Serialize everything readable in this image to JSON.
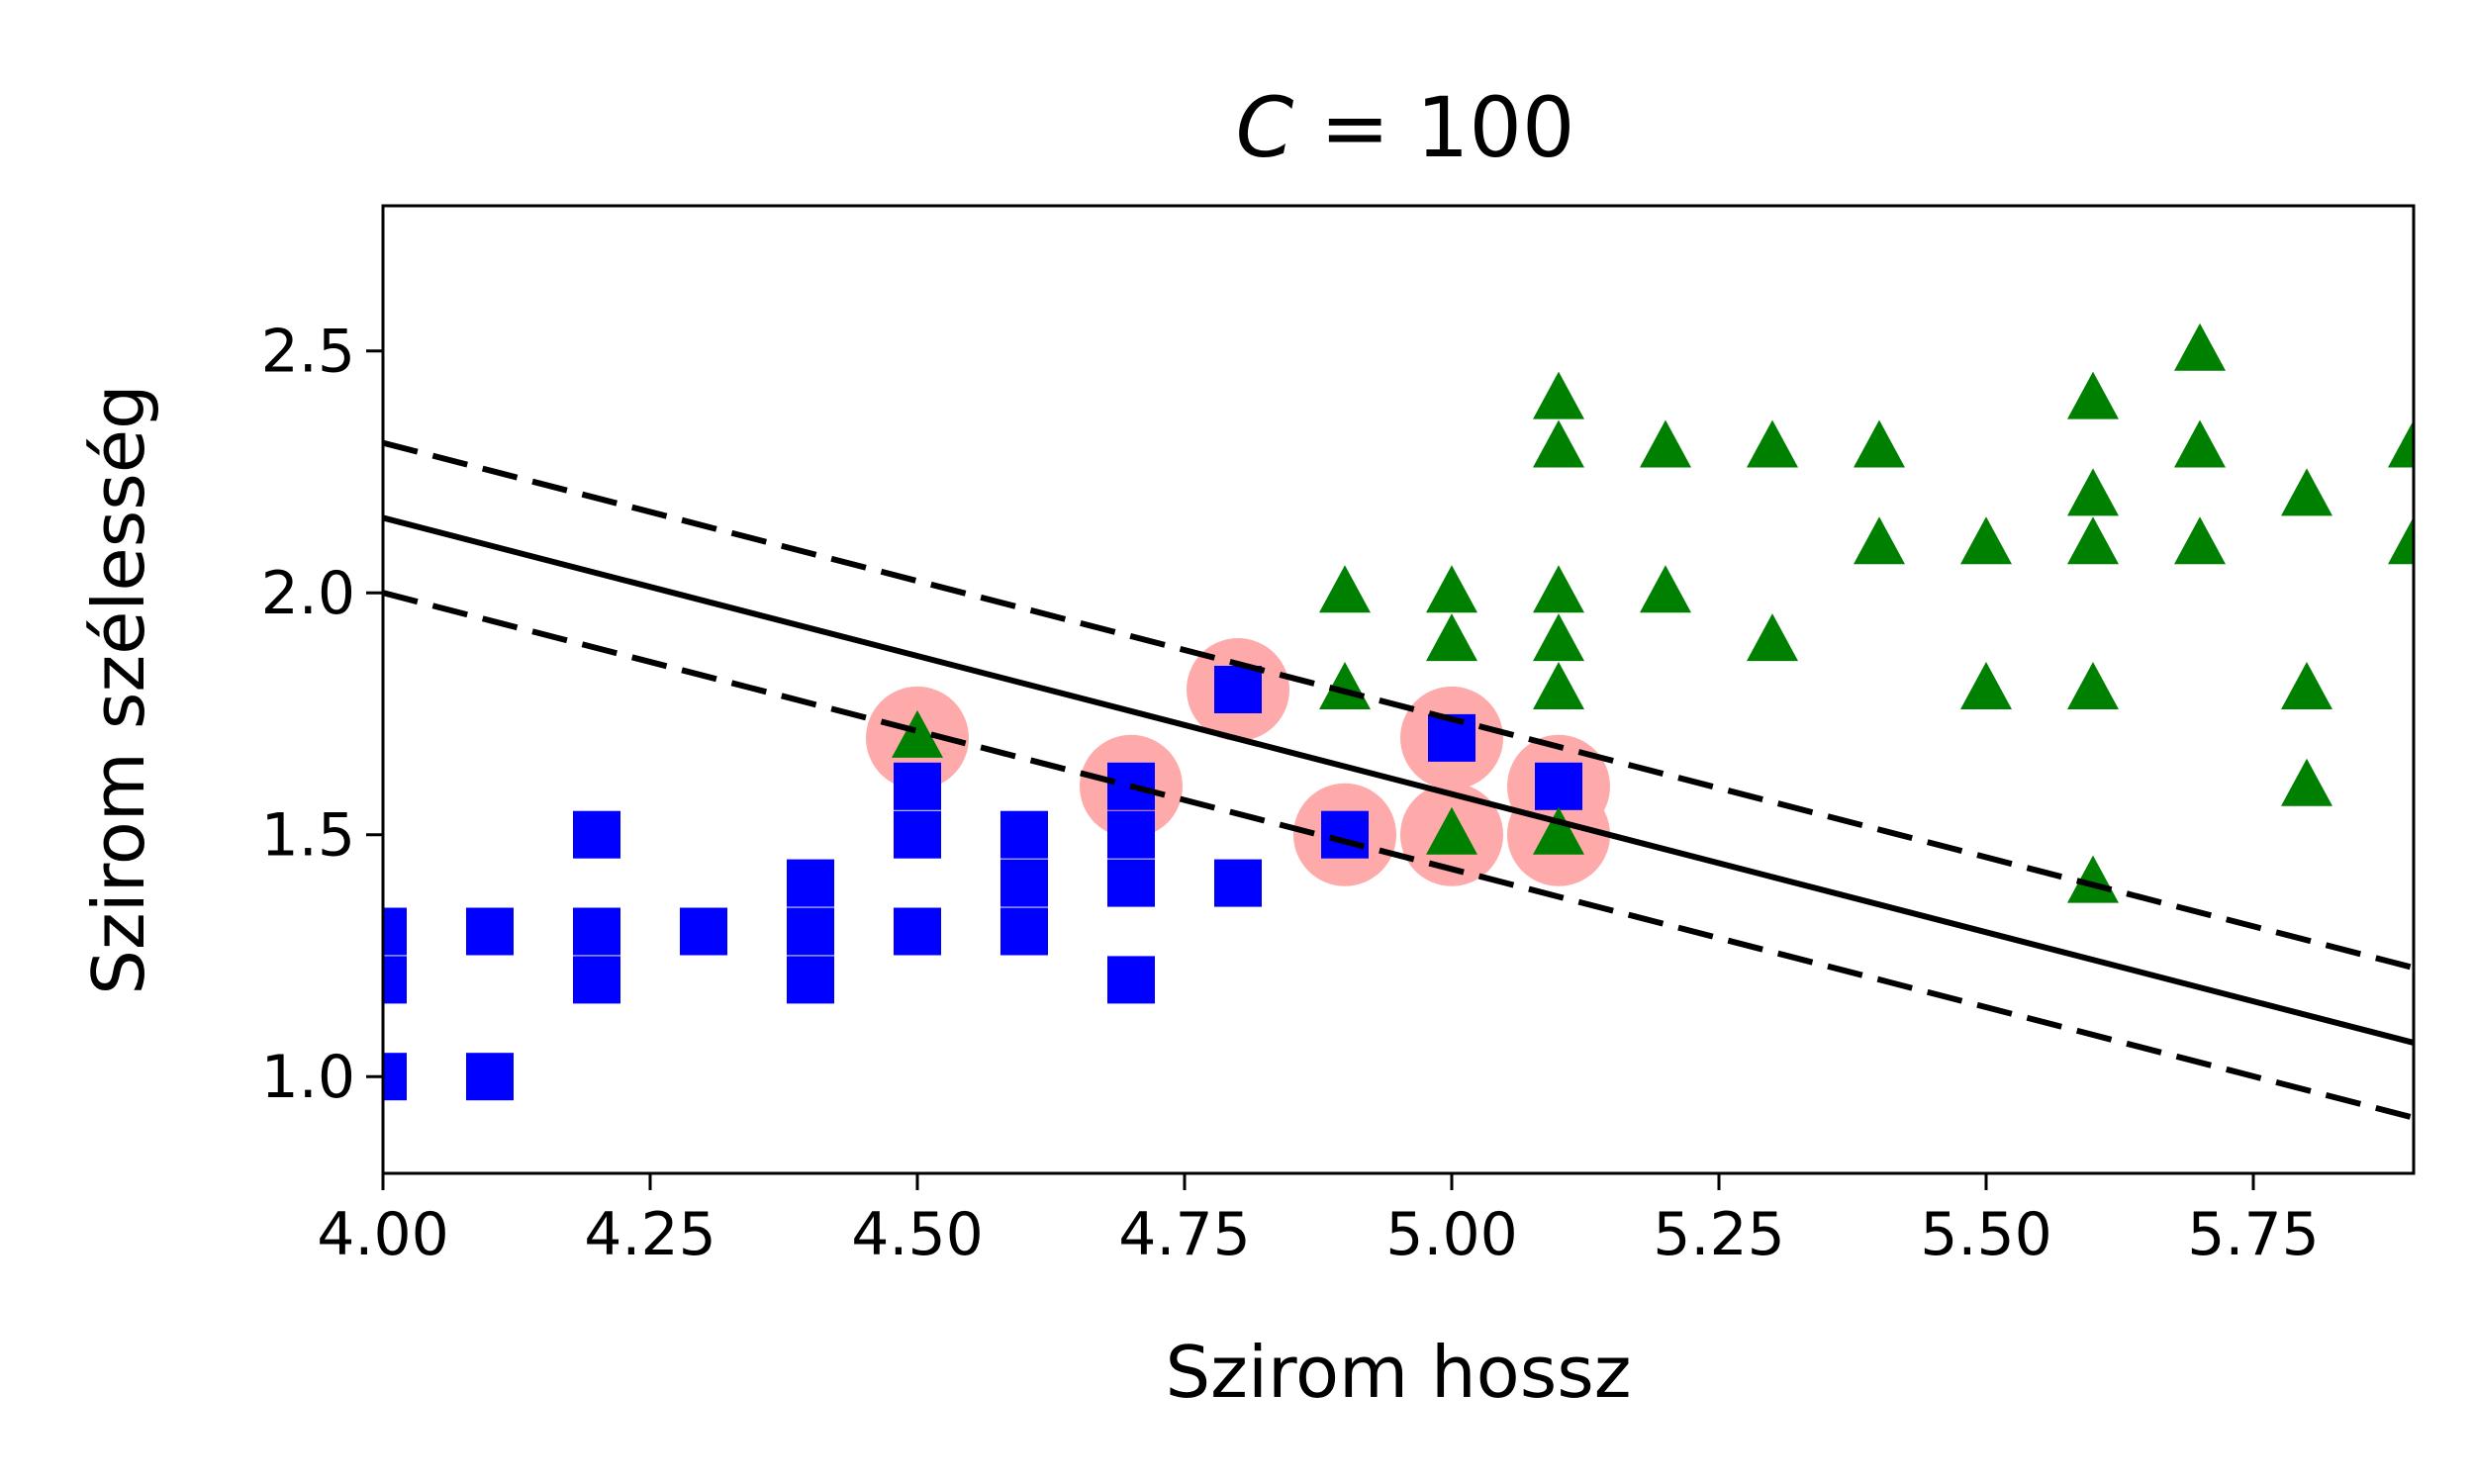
{
  "chart_data": {
    "type": "scatter",
    "title_var": "C",
    "title_rest": " = 100",
    "xlabel": "Szirom hossz",
    "ylabel": "Szirom szélesség",
    "xlim": [
      4.0,
      5.9
    ],
    "ylim": [
      0.8,
      2.8
    ],
    "xticks": [
      4.0,
      4.25,
      4.5,
      4.75,
      5.0,
      5.25,
      5.5,
      5.75
    ],
    "xtick_labels": [
      "4.00",
      "4.25",
      "4.50",
      "4.75",
      "5.00",
      "5.25",
      "5.50",
      "5.75"
    ],
    "yticks": [
      1.0,
      1.5,
      2.0,
      2.5
    ],
    "ytick_labels": [
      "1.0",
      "1.5",
      "2.0",
      "2.5"
    ],
    "grid": false,
    "series": [
      {
        "marker": "square",
        "color": "#0000ff",
        "points": [
          [
            4.0,
            1.0
          ],
          [
            4.0,
            1.2
          ],
          [
            4.0,
            1.3
          ],
          [
            4.1,
            1.0
          ],
          [
            4.1,
            1.3
          ],
          [
            4.2,
            1.2
          ],
          [
            4.2,
            1.3
          ],
          [
            4.2,
            1.5
          ],
          [
            4.3,
            1.3
          ],
          [
            4.4,
            1.2
          ],
          [
            4.4,
            1.3
          ],
          [
            4.4,
            1.4
          ],
          [
            4.5,
            1.3
          ],
          [
            4.5,
            1.5
          ],
          [
            4.5,
            1.6
          ],
          [
            4.6,
            1.3
          ],
          [
            4.6,
            1.4
          ],
          [
            4.6,
            1.5
          ],
          [
            4.7,
            1.2
          ],
          [
            4.7,
            1.4
          ],
          [
            4.7,
            1.5
          ],
          [
            4.7,
            1.6
          ],
          [
            4.8,
            1.4
          ],
          [
            4.8,
            1.8
          ],
          [
            4.9,
            1.5
          ],
          [
            5.0,
            1.7
          ],
          [
            5.1,
            1.6
          ]
        ]
      },
      {
        "marker": "triangle",
        "color": "#008000",
        "points": [
          [
            4.5,
            1.7
          ],
          [
            4.9,
            1.8
          ],
          [
            4.9,
            2.0
          ],
          [
            5.0,
            1.5
          ],
          [
            5.0,
            1.9
          ],
          [
            5.0,
            2.0
          ],
          [
            5.1,
            1.5
          ],
          [
            5.1,
            1.8
          ],
          [
            5.1,
            1.9
          ],
          [
            5.1,
            2.0
          ],
          [
            5.1,
            2.3
          ],
          [
            5.1,
            2.4
          ],
          [
            5.2,
            2.0
          ],
          [
            5.2,
            2.3
          ],
          [
            5.3,
            1.9
          ],
          [
            5.3,
            2.3
          ],
          [
            5.4,
            2.1
          ],
          [
            5.4,
            2.3
          ],
          [
            5.5,
            1.8
          ],
          [
            5.5,
            2.1
          ],
          [
            5.6,
            1.4
          ],
          [
            5.6,
            1.8
          ],
          [
            5.6,
            2.1
          ],
          [
            5.6,
            2.2
          ],
          [
            5.6,
            2.4
          ],
          [
            5.7,
            2.1
          ],
          [
            5.7,
            2.3
          ],
          [
            5.7,
            2.5
          ],
          [
            5.8,
            1.6
          ],
          [
            5.8,
            1.8
          ],
          [
            5.8,
            2.2
          ],
          [
            5.9,
            2.1
          ],
          [
            5.9,
            2.3
          ]
        ]
      }
    ],
    "support_vectors": {
      "color": "#ffaaaa",
      "points": [
        [
          4.5,
          1.7
        ],
        [
          4.7,
          1.6
        ],
        [
          4.8,
          1.8
        ],
        [
          4.9,
          1.5
        ],
        [
          5.0,
          1.7
        ],
        [
          5.0,
          1.5
        ],
        [
          5.1,
          1.6
        ],
        [
          5.1,
          1.5
        ]
      ]
    },
    "decision_boundary": {
      "color": "#000000",
      "points": [
        [
          4.0,
          2.155
        ],
        [
          5.9,
          1.07
        ]
      ]
    },
    "margin_upper": {
      "color": "#000000",
      "style": "dashed",
      "points": [
        [
          4.0,
          2.31
        ],
        [
          5.9,
          1.225
        ]
      ]
    },
    "margin_lower": {
      "color": "#000000",
      "style": "dashed",
      "points": [
        [
          4.0,
          2.0
        ],
        [
          5.9,
          0.915
        ]
      ]
    }
  }
}
